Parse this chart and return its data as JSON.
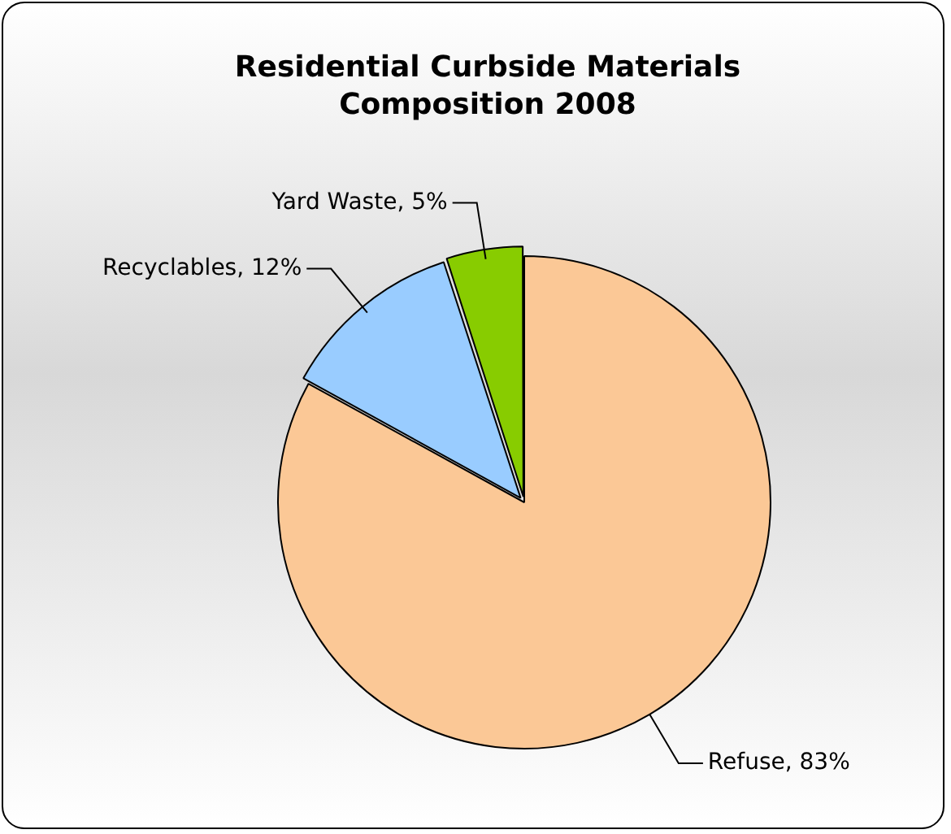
{
  "chart_data": {
    "type": "pie",
    "title": "Residential Curbside Materials Composition 2008",
    "categories": [
      "Refuse",
      "Recyclables",
      "Yard Waste"
    ],
    "values": [
      83,
      12,
      5
    ],
    "value_labels": [
      "83%",
      "12%",
      "5%"
    ],
    "colors": [
      "#fbc896",
      "#99ccff",
      "#88cc00"
    ]
  }
}
